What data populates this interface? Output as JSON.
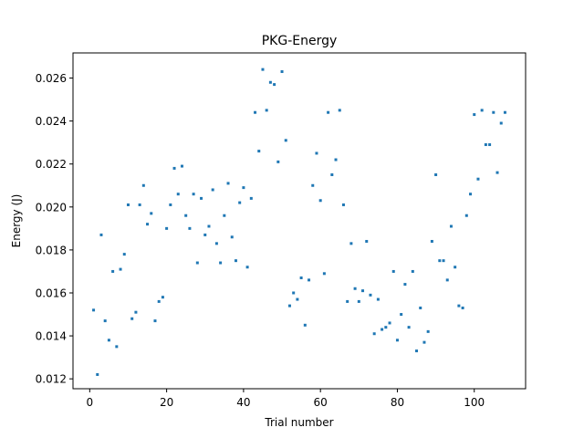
{
  "chart_data": {
    "type": "scatter",
    "title": "PKG-Energy",
    "xlabel": "Trial number",
    "ylabel": "Energy (J)",
    "xlim": [
      -4.35,
      113.35
    ],
    "ylim": [
      0.01154,
      0.02717
    ],
    "xticks": [
      0,
      20,
      40,
      60,
      80,
      100
    ],
    "xtick_labels": [
      "0",
      "20",
      "40",
      "60",
      "80",
      "100"
    ],
    "yticks": [
      0.012,
      0.014,
      0.016,
      0.018,
      0.02,
      0.022,
      0.024,
      0.026
    ],
    "ytick_labels": [
      "0.012",
      "0.014",
      "0.016",
      "0.018",
      "0.020",
      "0.022",
      "0.024",
      "0.026"
    ],
    "grid": false,
    "marker_color": "#1f77b4",
    "points": [
      [
        1,
        0.0152
      ],
      [
        2,
        0.0122
      ],
      [
        3,
        0.0187
      ],
      [
        4,
        0.0147
      ],
      [
        5,
        0.0138
      ],
      [
        6,
        0.017
      ],
      [
        7,
        0.0135
      ],
      [
        8,
        0.0171
      ],
      [
        9,
        0.0178
      ],
      [
        10,
        0.0201
      ],
      [
        11,
        0.0148
      ],
      [
        12,
        0.0151
      ],
      [
        13,
        0.0201
      ],
      [
        14,
        0.021
      ],
      [
        15,
        0.0192
      ],
      [
        16,
        0.0197
      ],
      [
        17,
        0.0147
      ],
      [
        18,
        0.0156
      ],
      [
        19,
        0.0158
      ],
      [
        20,
        0.019
      ],
      [
        21,
        0.0201
      ],
      [
        22,
        0.0218
      ],
      [
        23,
        0.0206
      ],
      [
        24,
        0.0219
      ],
      [
        25,
        0.0196
      ],
      [
        26,
        0.019
      ],
      [
        27,
        0.0206
      ],
      [
        28,
        0.0174
      ],
      [
        29,
        0.0204
      ],
      [
        30,
        0.0187
      ],
      [
        31,
        0.0191
      ],
      [
        32,
        0.0208
      ],
      [
        33,
        0.0183
      ],
      [
        34,
        0.0174
      ],
      [
        35,
        0.0196
      ],
      [
        36,
        0.0211
      ],
      [
        37,
        0.0186
      ],
      [
        38,
        0.0175
      ],
      [
        39,
        0.0202
      ],
      [
        40,
        0.0209
      ],
      [
        41,
        0.0172
      ],
      [
        42,
        0.0204
      ],
      [
        43,
        0.0244
      ],
      [
        44,
        0.0226
      ],
      [
        45,
        0.0264
      ],
      [
        46,
        0.0245
      ],
      [
        47,
        0.0258
      ],
      [
        48,
        0.0257
      ],
      [
        49,
        0.0221
      ],
      [
        50,
        0.0263
      ],
      [
        51,
        0.0231
      ],
      [
        52,
        0.0154
      ],
      [
        53,
        0.016
      ],
      [
        54,
        0.0157
      ],
      [
        55,
        0.0167
      ],
      [
        56,
        0.0145
      ],
      [
        57,
        0.0166
      ],
      [
        58,
        0.021
      ],
      [
        59,
        0.0225
      ],
      [
        60,
        0.0203
      ],
      [
        61,
        0.0169
      ],
      [
        62,
        0.0244
      ],
      [
        63,
        0.0215
      ],
      [
        64,
        0.0222
      ],
      [
        65,
        0.0245
      ],
      [
        66,
        0.0201
      ],
      [
        67,
        0.0156
      ],
      [
        68,
        0.0183
      ],
      [
        69,
        0.0162
      ],
      [
        70,
        0.0156
      ],
      [
        71,
        0.0161
      ],
      [
        72,
        0.0184
      ],
      [
        73,
        0.0159
      ],
      [
        74,
        0.0141
      ],
      [
        75,
        0.0157
      ],
      [
        76,
        0.0143
      ],
      [
        77,
        0.0144
      ],
      [
        78,
        0.0146
      ],
      [
        79,
        0.017
      ],
      [
        80,
        0.0138
      ],
      [
        81,
        0.015
      ],
      [
        82,
        0.0164
      ],
      [
        83,
        0.0144
      ],
      [
        84,
        0.017
      ],
      [
        85,
        0.0133
      ],
      [
        86,
        0.0153
      ],
      [
        87,
        0.0137
      ],
      [
        88,
        0.0142
      ],
      [
        89,
        0.0184
      ],
      [
        90,
        0.0215
      ],
      [
        91,
        0.0175
      ],
      [
        92,
        0.0175
      ],
      [
        93,
        0.0166
      ],
      [
        94,
        0.0191
      ],
      [
        95,
        0.0172
      ],
      [
        96,
        0.0154
      ],
      [
        97,
        0.0153
      ],
      [
        98,
        0.0196
      ],
      [
        99,
        0.0206
      ],
      [
        100,
        0.0243
      ],
      [
        101,
        0.0213
      ],
      [
        102,
        0.0245
      ],
      [
        103,
        0.0229
      ],
      [
        104,
        0.0229
      ],
      [
        105,
        0.0244
      ],
      [
        106,
        0.0216
      ],
      [
        107,
        0.0239
      ],
      [
        108,
        0.0244
      ]
    ]
  }
}
